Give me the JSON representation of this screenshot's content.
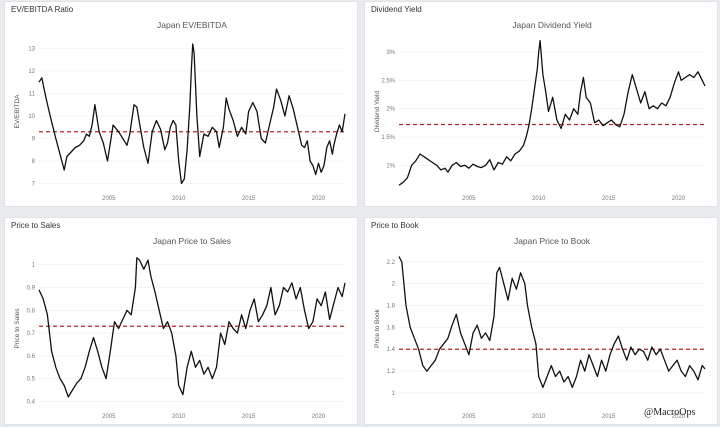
{
  "panels": {
    "ev_ebitda": {
      "header": "EV/EBITDA Ratio"
    },
    "dividend": {
      "header": "Dividend Yield"
    },
    "ps": {
      "header": "Price to Sales"
    },
    "pb": {
      "header": "Price to Book"
    }
  },
  "watermark": "@MacroOps",
  "colors": {
    "line": "#111111",
    "average": "#b5242a",
    "grid": "#eeeeee",
    "card": "#ffffff",
    "background": "#e9ebee"
  },
  "chart_data": [
    {
      "id": "ev_ebitda",
      "type": "line",
      "title": "Japan EV/EBITDA",
      "xlabel": "",
      "ylabel": "EV/EBITDA",
      "xlim": [
        2000.0,
        2021.9
      ],
      "ylim": [
        6.8,
        13.6
      ],
      "xticks": [
        2005,
        2010,
        2015,
        2020
      ],
      "yticks": [
        7,
        8,
        9,
        10,
        11,
        12,
        13
      ],
      "ytick_labels": [
        "7",
        "8",
        "9",
        "10",
        "11",
        "12",
        "13"
      ],
      "average_line": 9.3,
      "series": [
        {
          "name": "Japan EV/EBITDA",
          "x": [
            2000.0,
            2000.2,
            2000.5,
            2000.8,
            2001.0,
            2001.2,
            2001.5,
            2001.8,
            2002.0,
            2002.3,
            2002.6,
            2002.9,
            2003.2,
            2003.4,
            2003.6,
            2003.8,
            2004.0,
            2004.3,
            2004.6,
            2004.9,
            2005.3,
            2005.7,
            2006.0,
            2006.3,
            2006.5,
            2006.8,
            2007.0,
            2007.3,
            2007.5,
            2007.8,
            2008.1,
            2008.4,
            2008.7,
            2009.0,
            2009.2,
            2009.4,
            2009.6,
            2009.8,
            2010.0,
            2010.2,
            2010.4,
            2010.6,
            2010.8,
            2010.9,
            2011.0,
            2011.1,
            2011.3,
            2011.5,
            2011.8,
            2012.1,
            2012.4,
            2012.7,
            2012.9,
            2013.2,
            2013.4,
            2013.6,
            2013.9,
            2014.2,
            2014.5,
            2014.8,
            2015.0,
            2015.3,
            2015.6,
            2015.9,
            2016.2,
            2016.5,
            2016.8,
            2017.0,
            2017.3,
            2017.6,
            2017.9,
            2018.2,
            2018.5,
            2018.8,
            2019.0,
            2019.2,
            2019.4,
            2019.6,
            2019.8,
            2020.0,
            2020.2,
            2020.4,
            2020.6,
            2020.8,
            2021.0,
            2021.1,
            2021.3,
            2021.5,
            2021.7,
            2021.9
          ],
          "y": [
            11.5,
            11.7,
            10.8,
            10.0,
            9.5,
            9.0,
            8.3,
            7.6,
            8.2,
            8.4,
            8.6,
            8.7,
            8.9,
            9.2,
            9.1,
            9.6,
            10.5,
            9.3,
            8.8,
            8.0,
            9.6,
            9.3,
            9.0,
            8.7,
            9.2,
            10.5,
            10.4,
            9.3,
            8.6,
            7.9,
            9.3,
            9.8,
            9.4,
            8.5,
            8.8,
            9.5,
            9.8,
            9.6,
            8.0,
            7.0,
            7.2,
            8.5,
            10.5,
            12.0,
            13.2,
            12.8,
            10.0,
            8.2,
            9.2,
            9.1,
            9.5,
            9.3,
            8.6,
            9.5,
            10.8,
            10.3,
            9.8,
            9.1,
            9.5,
            9.2,
            10.2,
            10.6,
            10.2,
            9.0,
            8.8,
            9.6,
            10.4,
            11.2,
            10.7,
            10.0,
            10.9,
            10.3,
            9.5,
            8.7,
            8.6,
            8.9,
            8.0,
            7.8,
            7.4,
            7.9,
            7.5,
            7.8,
            8.6,
            8.9,
            8.3,
            8.7,
            9.2,
            9.6,
            9.3,
            10.1
          ]
        }
      ]
    },
    {
      "id": "dividend",
      "type": "line",
      "title": "Japan Dividend Yield",
      "xlabel": "",
      "ylabel": "Dividend Yield",
      "xlim": [
        2000.0,
        2021.9
      ],
      "ylim": [
        0.6,
        3.3
      ],
      "xticks": [
        2005,
        2010,
        2015,
        2020
      ],
      "yticks": [
        1.0,
        1.5,
        2.0,
        2.5,
        3.0
      ],
      "ytick_labels": [
        "1%",
        "1.5%",
        "2%",
        "2.5%",
        "3%"
      ],
      "average_line": 1.72,
      "series": [
        {
          "name": "Japan Dividend Yield",
          "x": [
            2000.0,
            2000.3,
            2000.6,
            2000.9,
            2001.2,
            2001.5,
            2001.8,
            2002.1,
            2002.4,
            2002.7,
            2003.0,
            2003.3,
            2003.5,
            2003.8,
            2004.1,
            2004.4,
            2004.7,
            2005.0,
            2005.3,
            2005.6,
            2005.9,
            2006.2,
            2006.5,
            2006.8,
            2007.1,
            2007.4,
            2007.7,
            2008.0,
            2008.3,
            2008.6,
            2008.9,
            2009.1,
            2009.3,
            2009.5,
            2009.7,
            2009.9,
            2010.0,
            2010.1,
            2010.3,
            2010.5,
            2010.7,
            2011.0,
            2011.3,
            2011.6,
            2011.9,
            2012.2,
            2012.5,
            2012.8,
            2013.0,
            2013.2,
            2013.4,
            2013.7,
            2014.0,
            2014.3,
            2014.6,
            2014.9,
            2015.2,
            2015.5,
            2015.8,
            2016.1,
            2016.4,
            2016.7,
            2017.0,
            2017.3,
            2017.6,
            2017.9,
            2018.2,
            2018.5,
            2018.8,
            2019.1,
            2019.4,
            2019.7,
            2020.0,
            2020.2,
            2020.5,
            2020.8,
            2021.1,
            2021.4,
            2021.7,
            2021.9
          ],
          "y": [
            0.65,
            0.7,
            0.78,
            1.0,
            1.08,
            1.2,
            1.15,
            1.1,
            1.05,
            1.0,
            0.92,
            0.95,
            0.88,
            1.0,
            1.05,
            0.98,
            1.0,
            0.95,
            1.02,
            0.98,
            0.96,
            1.0,
            1.1,
            0.92,
            1.05,
            1.02,
            1.15,
            1.08,
            1.2,
            1.25,
            1.35,
            1.5,
            1.7,
            2.0,
            2.35,
            2.7,
            3.0,
            3.2,
            2.6,
            2.3,
            1.95,
            2.2,
            1.8,
            1.65,
            1.9,
            1.8,
            2.0,
            1.9,
            2.3,
            2.55,
            2.2,
            2.1,
            1.75,
            1.8,
            1.7,
            1.75,
            1.8,
            1.72,
            1.68,
            1.9,
            2.3,
            2.6,
            2.35,
            2.1,
            2.3,
            2.0,
            2.05,
            2.0,
            2.1,
            2.05,
            2.2,
            2.45,
            2.65,
            2.5,
            2.55,
            2.6,
            2.55,
            2.65,
            2.5,
            2.4
          ]
        }
      ]
    },
    {
      "id": "ps",
      "type": "line",
      "title": "Japan Price to Sales",
      "xlabel": "",
      "ylabel": "Price to Sales",
      "xlim": [
        2000.0,
        2021.9
      ],
      "ylim": [
        0.38,
        1.06
      ],
      "xticks": [
        2005,
        2010,
        2015,
        2020
      ],
      "yticks": [
        0.4,
        0.5,
        0.6,
        0.7,
        0.8,
        0.9,
        1.0
      ],
      "ytick_labels": [
        "0.4",
        "0.5",
        "0.6",
        "0.7",
        "0.8",
        "0.9",
        "1"
      ],
      "average_line": 0.73,
      "series": [
        {
          "name": "Japan Price to Sales",
          "x": [
            2000.0,
            2000.3,
            2000.6,
            2000.9,
            2001.2,
            2001.5,
            2001.8,
            2002.1,
            2002.4,
            2002.7,
            2003.0,
            2003.3,
            2003.6,
            2003.9,
            2004.2,
            2004.5,
            2004.8,
            2005.1,
            2005.4,
            2005.7,
            2006.0,
            2006.3,
            2006.6,
            2006.9,
            2007.0,
            2007.2,
            2007.5,
            2007.8,
            2008.0,
            2008.3,
            2008.6,
            2008.9,
            2009.2,
            2009.5,
            2009.8,
            2010.0,
            2010.3,
            2010.6,
            2010.9,
            2011.2,
            2011.5,
            2011.8,
            2012.1,
            2012.4,
            2012.7,
            2013.0,
            2013.3,
            2013.6,
            2013.9,
            2014.2,
            2014.5,
            2014.8,
            2015.1,
            2015.4,
            2015.7,
            2016.0,
            2016.3,
            2016.6,
            2016.9,
            2017.2,
            2017.5,
            2017.8,
            2018.1,
            2018.4,
            2018.7,
            2019.0,
            2019.3,
            2019.6,
            2019.9,
            2020.2,
            2020.5,
            2020.8,
            2021.1,
            2021.4,
            2021.7,
            2021.9
          ],
          "y": [
            0.89,
            0.85,
            0.78,
            0.62,
            0.55,
            0.5,
            0.47,
            0.42,
            0.45,
            0.48,
            0.5,
            0.55,
            0.62,
            0.68,
            0.62,
            0.55,
            0.5,
            0.62,
            0.75,
            0.72,
            0.76,
            0.8,
            0.78,
            0.9,
            1.03,
            1.02,
            0.98,
            1.02,
            0.95,
            0.88,
            0.8,
            0.72,
            0.75,
            0.7,
            0.6,
            0.47,
            0.43,
            0.55,
            0.62,
            0.55,
            0.58,
            0.52,
            0.55,
            0.5,
            0.55,
            0.7,
            0.65,
            0.75,
            0.72,
            0.7,
            0.78,
            0.72,
            0.8,
            0.85,
            0.75,
            0.78,
            0.82,
            0.9,
            0.78,
            0.82,
            0.9,
            0.88,
            0.92,
            0.85,
            0.9,
            0.8,
            0.72,
            0.75,
            0.85,
            0.82,
            0.88,
            0.76,
            0.83,
            0.9,
            0.86,
            0.92
          ]
        }
      ]
    },
    {
      "id": "pb",
      "type": "line",
      "title": "Japan Price to Book",
      "xlabel": "",
      "ylabel": "Price to Book",
      "xlim": [
        2000.0,
        2021.9
      ],
      "ylim": [
        0.88,
        2.3
      ],
      "xticks": [
        2005,
        2010,
        2015,
        2020
      ],
      "yticks": [
        1.0,
        1.2,
        1.4,
        1.6,
        1.8,
        2.0,
        2.2
      ],
      "ytick_labels": [
        "1",
        "1.2",
        "1.4",
        "1.6",
        "1.8",
        "2",
        "2.2"
      ],
      "average_line": 1.4,
      "series": [
        {
          "name": "Japan Price to Book",
          "x": [
            2000.0,
            2000.2,
            2000.5,
            2000.8,
            2001.1,
            2001.4,
            2001.7,
            2002.0,
            2002.3,
            2002.6,
            2002.9,
            2003.2,
            2003.5,
            2003.8,
            2004.1,
            2004.4,
            2004.7,
            2005.0,
            2005.3,
            2005.6,
            2005.9,
            2006.2,
            2006.5,
            2006.8,
            2007.0,
            2007.2,
            2007.5,
            2007.8,
            2008.1,
            2008.4,
            2008.7,
            2009.0,
            2009.2,
            2009.5,
            2009.8,
            2010.0,
            2010.3,
            2010.6,
            2010.9,
            2011.2,
            2011.5,
            2011.8,
            2012.1,
            2012.4,
            2012.7,
            2013.0,
            2013.3,
            2013.6,
            2013.9,
            2014.2,
            2014.5,
            2014.8,
            2015.1,
            2015.4,
            2015.7,
            2016.0,
            2016.3,
            2016.6,
            2016.9,
            2017.2,
            2017.5,
            2017.8,
            2018.1,
            2018.4,
            2018.7,
            2019.0,
            2019.3,
            2019.6,
            2019.9,
            2020.2,
            2020.5,
            2020.8,
            2021.1,
            2021.4,
            2021.7,
            2021.9
          ],
          "y": [
            2.25,
            2.2,
            1.8,
            1.6,
            1.5,
            1.4,
            1.25,
            1.2,
            1.25,
            1.3,
            1.4,
            1.45,
            1.5,
            1.62,
            1.72,
            1.55,
            1.45,
            1.35,
            1.55,
            1.62,
            1.5,
            1.55,
            1.48,
            1.7,
            2.1,
            2.15,
            2.0,
            1.85,
            2.05,
            1.95,
            2.1,
            2.0,
            1.8,
            1.6,
            1.45,
            1.15,
            1.05,
            1.15,
            1.25,
            1.15,
            1.2,
            1.1,
            1.15,
            1.05,
            1.15,
            1.3,
            1.2,
            1.35,
            1.25,
            1.15,
            1.3,
            1.2,
            1.35,
            1.45,
            1.52,
            1.4,
            1.3,
            1.42,
            1.35,
            1.4,
            1.38,
            1.3,
            1.42,
            1.35,
            1.4,
            1.3,
            1.2,
            1.25,
            1.3,
            1.2,
            1.15,
            1.25,
            1.2,
            1.12,
            1.25,
            1.22
          ]
        }
      ]
    }
  ]
}
